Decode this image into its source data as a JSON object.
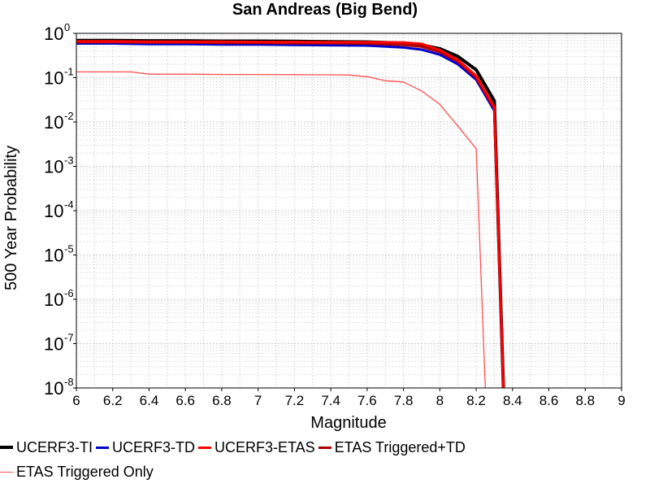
{
  "chart_data": {
    "type": "line",
    "title": "San Andreas (Big Bend)",
    "xlabel": "Magnitude",
    "ylabel": "500 Year Probability",
    "xlim": [
      6,
      9
    ],
    "ylim": [
      1e-08,
      1
    ],
    "y_scale": "log",
    "grid": true,
    "legend_position": "bottom",
    "x_ticks": [
      "6",
      "6.2",
      "6.4",
      "6.6",
      "6.8",
      "7",
      "7.2",
      "7.4",
      "7.6",
      "7.8",
      "8",
      "8.2",
      "8.4",
      "8.6",
      "8.8",
      "9"
    ],
    "y_ticks": [
      {
        "base": "10",
        "exp": "0",
        "value": 1
      },
      {
        "base": "10",
        "exp": "-1",
        "value": 0.1
      },
      {
        "base": "10",
        "exp": "-2",
        "value": 0.01
      },
      {
        "base": "10",
        "exp": "-3",
        "value": 0.001
      },
      {
        "base": "10",
        "exp": "-4",
        "value": 0.0001
      },
      {
        "base": "10",
        "exp": "-5",
        "value": 1e-05
      },
      {
        "base": "10",
        "exp": "-6",
        "value": 1e-06
      },
      {
        "base": "10",
        "exp": "-7",
        "value": 1e-07
      },
      {
        "base": "10",
        "exp": "-8",
        "value": 1e-08
      }
    ],
    "series": [
      {
        "name": "UCERF3-TI",
        "color": "#000000",
        "width": 4,
        "x": [
          6.0,
          6.2,
          6.4,
          6.6,
          6.8,
          7.0,
          7.2,
          7.4,
          7.6,
          7.8,
          7.9,
          8.0,
          8.1,
          8.2,
          8.3,
          8.35
        ],
        "y": [
          0.69,
          0.69,
          0.68,
          0.68,
          0.67,
          0.67,
          0.66,
          0.65,
          0.64,
          0.6,
          0.55,
          0.45,
          0.3,
          0.15,
          0.03,
          1e-08
        ]
      },
      {
        "name": "UCERF3-TD",
        "color": "#0000cc",
        "width": 3,
        "x": [
          6.0,
          6.2,
          6.4,
          6.6,
          6.8,
          7.0,
          7.2,
          7.4,
          7.6,
          7.8,
          7.9,
          8.0,
          8.1,
          8.2,
          8.3,
          8.35
        ],
        "y": [
          0.59,
          0.59,
          0.57,
          0.57,
          0.56,
          0.56,
          0.55,
          0.54,
          0.53,
          0.48,
          0.43,
          0.33,
          0.2,
          0.09,
          0.018,
          1e-08
        ]
      },
      {
        "name": "UCERF3-ETAS",
        "color": "#ff0000",
        "width": 3,
        "x": [
          6.0,
          6.2,
          6.4,
          6.6,
          6.8,
          7.0,
          7.2,
          7.4,
          7.6,
          7.8,
          7.9,
          8.0,
          8.1,
          8.2,
          8.3,
          8.35
        ],
        "y": [
          0.66,
          0.66,
          0.65,
          0.65,
          0.65,
          0.64,
          0.64,
          0.63,
          0.63,
          0.62,
          0.58,
          0.42,
          0.25,
          0.11,
          0.022,
          1e-08
        ]
      },
      {
        "name": "ETAS Triggered+TD",
        "color": "#b00000",
        "width": 3,
        "x": [
          6.0,
          6.2,
          6.4,
          6.6,
          6.8,
          7.0,
          7.2,
          7.4,
          7.6,
          7.8,
          7.9,
          8.0,
          8.1,
          8.2,
          8.3,
          8.35
        ],
        "y": [
          0.63,
          0.63,
          0.62,
          0.62,
          0.61,
          0.61,
          0.6,
          0.6,
          0.59,
          0.55,
          0.5,
          0.38,
          0.23,
          0.1,
          0.02,
          1e-08
        ]
      },
      {
        "name": "ETAS Triggered Only",
        "color": "#ff5050",
        "width": 1.3,
        "x": [
          6.0,
          6.3,
          6.4,
          6.6,
          6.8,
          7.0,
          7.2,
          7.4,
          7.5,
          7.6,
          7.7,
          7.8,
          7.9,
          8.0,
          8.1,
          8.2,
          8.25
        ],
        "y": [
          0.135,
          0.135,
          0.12,
          0.12,
          0.118,
          0.118,
          0.117,
          0.116,
          0.115,
          0.105,
          0.085,
          0.08,
          0.05,
          0.025,
          0.008,
          0.0025,
          1e-08
        ]
      }
    ]
  }
}
